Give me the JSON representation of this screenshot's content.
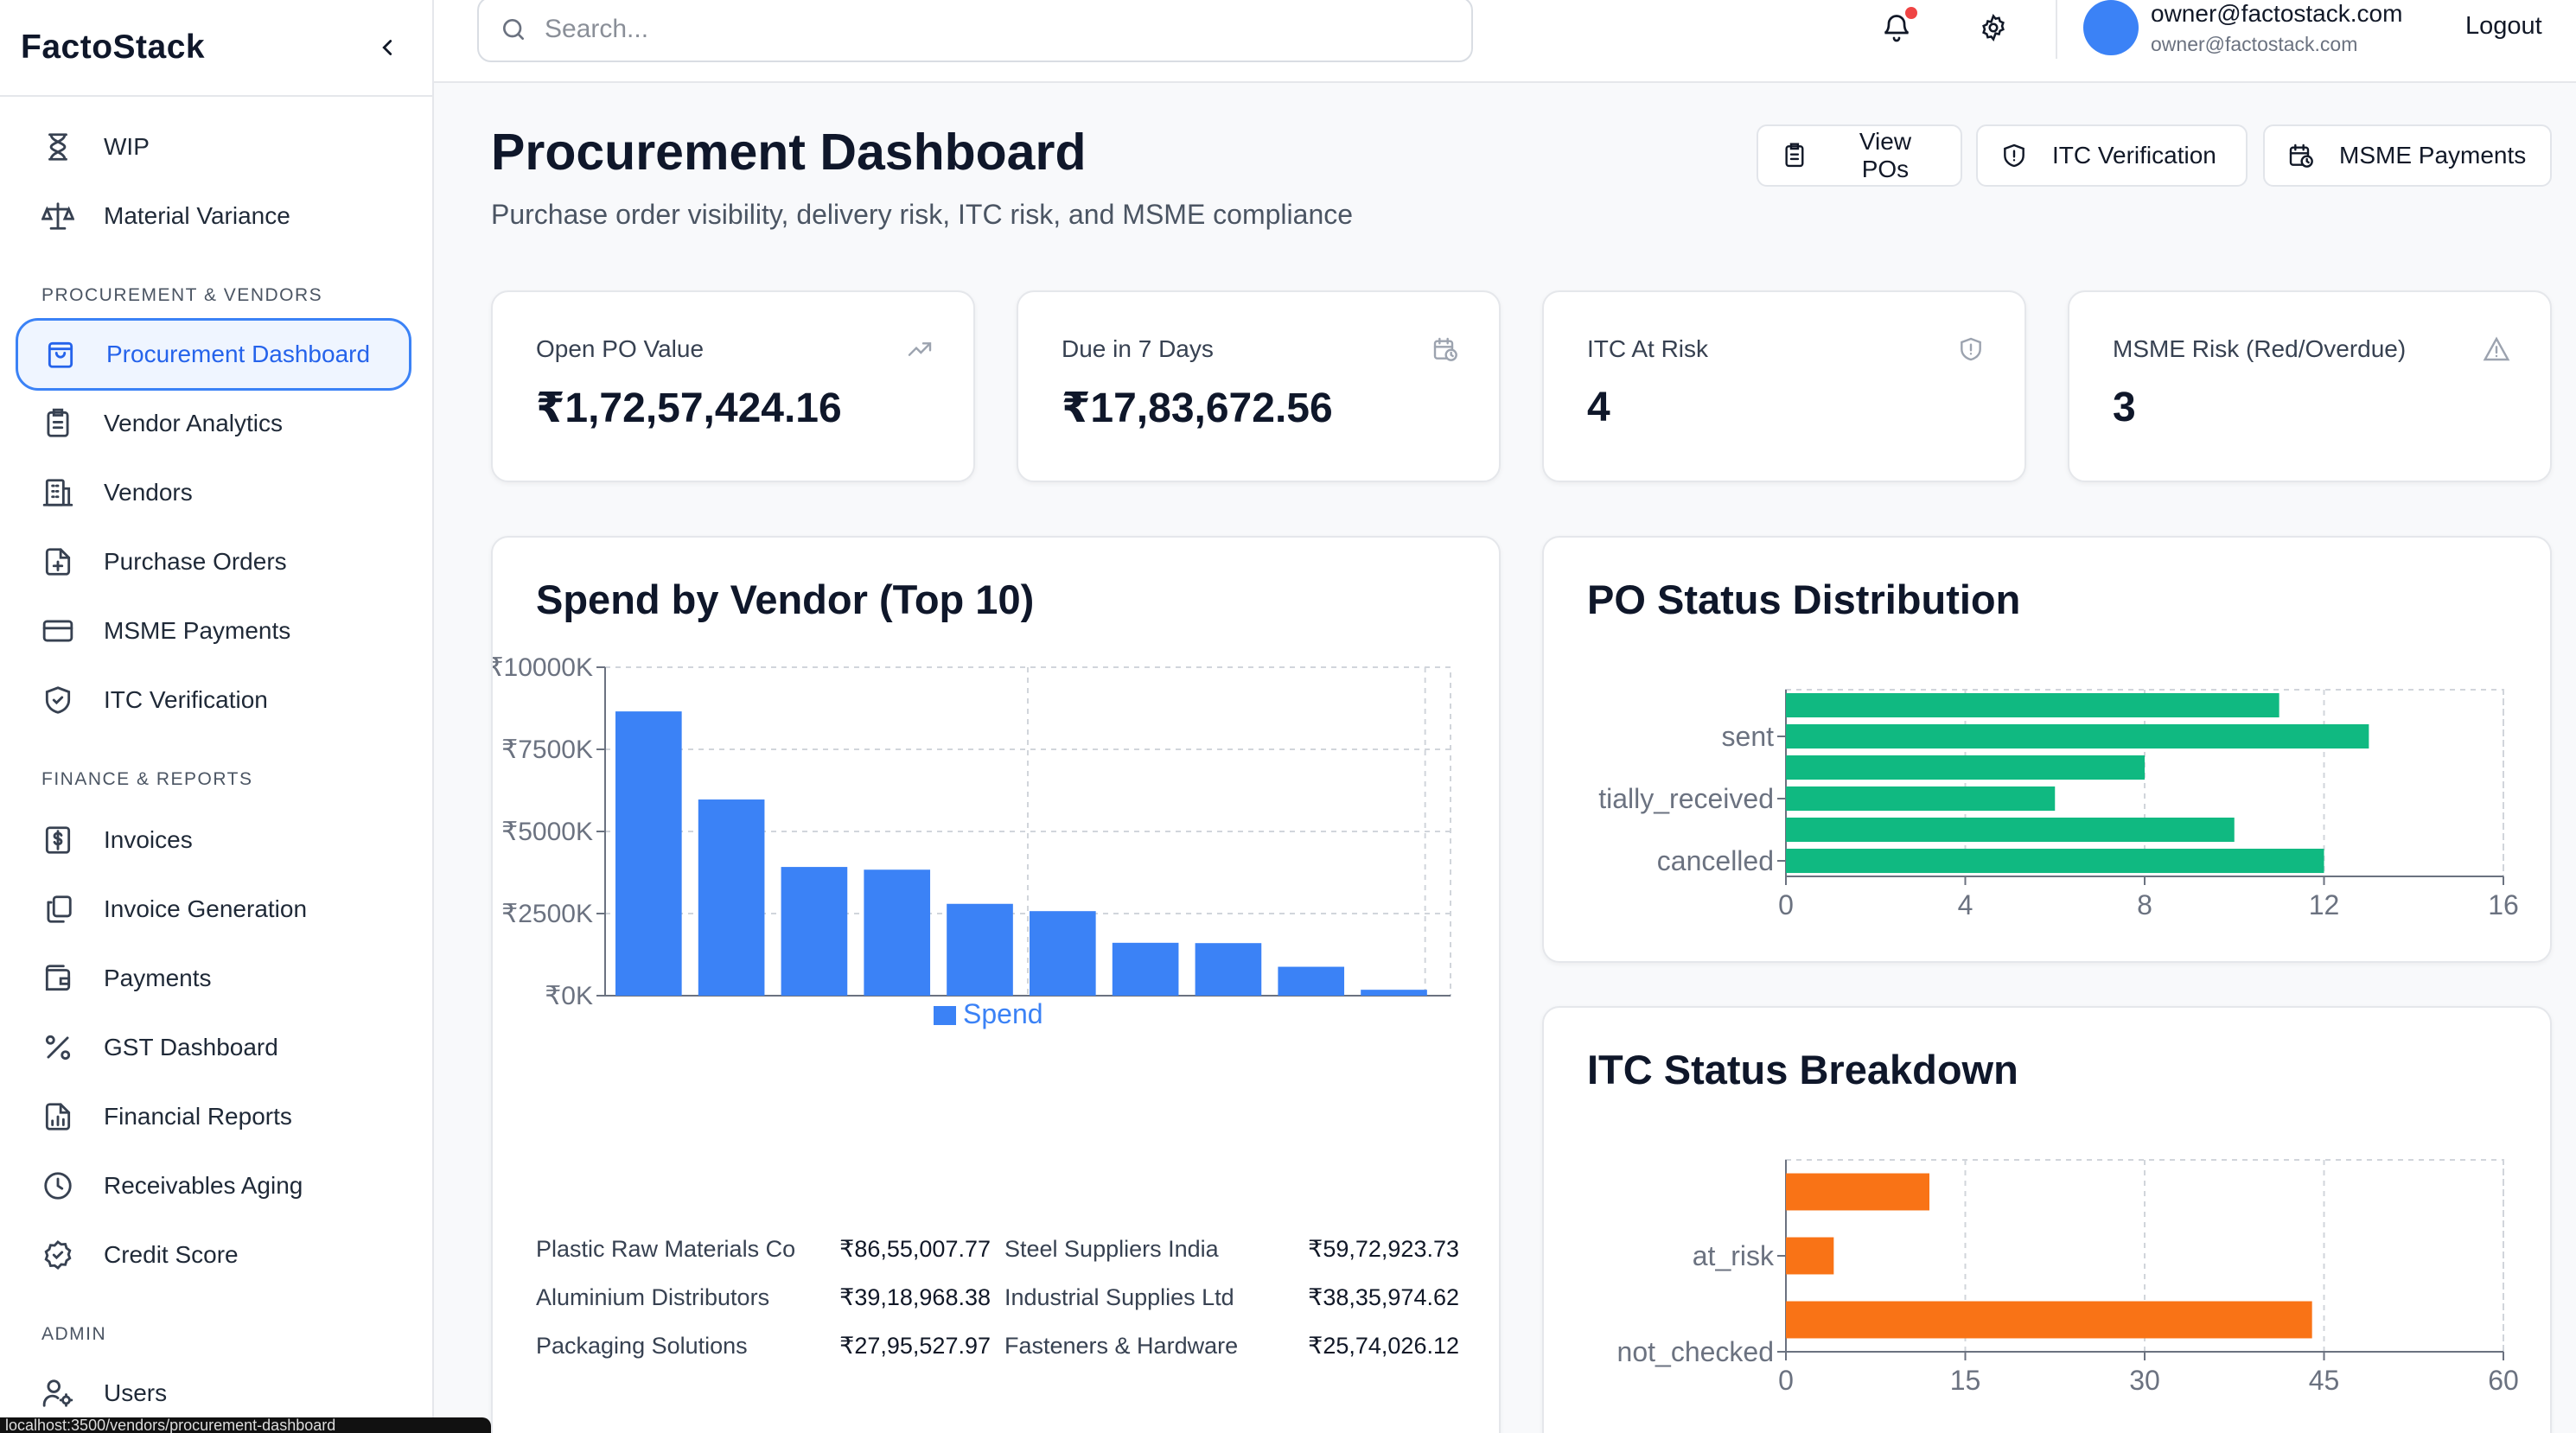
{
  "app": {
    "brand": "FactoStack"
  },
  "sidebar": {
    "top_items": [
      {
        "label": "WIP",
        "icon": "hourglass-icon"
      },
      {
        "label": "Material Variance",
        "icon": "scale-icon"
      }
    ],
    "sections": [
      {
        "title": "PROCUREMENT & VENDORS"
      },
      {
        "title": "FINANCE & REPORTS"
      },
      {
        "title": "ADMIN"
      }
    ],
    "procurement_items": [
      {
        "label": "Procurement Dashboard",
        "icon": "shopping-bag-icon",
        "active": true
      },
      {
        "label": "Vendor Analytics",
        "icon": "clipboard-list-icon"
      },
      {
        "label": "Vendors",
        "icon": "building-icon"
      },
      {
        "label": "Purchase Orders",
        "icon": "file-plus-icon"
      },
      {
        "label": "MSME Payments",
        "icon": "credit-card-icon"
      },
      {
        "label": "ITC Verification",
        "icon": "shield-check-icon"
      }
    ],
    "finance_items": [
      {
        "label": "Invoices",
        "icon": "dollar-file-icon"
      },
      {
        "label": "Invoice Generation",
        "icon": "copy-files-icon"
      },
      {
        "label": "Payments",
        "icon": "wallet-icon"
      },
      {
        "label": "GST Dashboard",
        "icon": "percent-icon"
      },
      {
        "label": "Financial Reports",
        "icon": "file-chart-icon"
      },
      {
        "label": "Receivables Aging",
        "icon": "clock-icon"
      },
      {
        "label": "Credit Score",
        "icon": "badge-check-icon"
      }
    ],
    "admin_items": [
      {
        "label": "Users",
        "icon": "user-cog-icon"
      }
    ],
    "status_url": "localhost:3500/vendors/procurement-dashboard"
  },
  "topbar": {
    "search_placeholder": "Search...",
    "user_name": "owner@factostack.com",
    "user_email": "owner@factostack.com",
    "logout_label": "Logout"
  },
  "header": {
    "title": "Procurement Dashboard",
    "subtitle": "Purchase order visibility, delivery risk, ITC risk, and MSME compliance",
    "buttons": [
      {
        "label": "View POs",
        "icon": "clipboard-icon"
      },
      {
        "label": "ITC Verification",
        "icon": "shield-icon"
      },
      {
        "label": "MSME Payments",
        "icon": "calendar-clock-icon"
      }
    ]
  },
  "kpis": [
    {
      "label": "Open PO Value",
      "value": "₹1,72,57,424.16",
      "icon": "trending-up-icon"
    },
    {
      "label": "Due in 7 Days",
      "value": "₹17,83,672.56",
      "icon": "calendar-clock-icon"
    },
    {
      "label": "ITC At Risk",
      "value": "4",
      "icon": "shield-icon"
    },
    {
      "label": "MSME Risk (Red/Overdue)",
      "value": "3",
      "icon": "alert-triangle-icon"
    }
  ],
  "spend_card": {
    "title": "Spend by Vendor (Top 10)",
    "vendors": [
      {
        "name": "Plastic Raw Materials Co",
        "amount": "₹86,55,007.77"
      },
      {
        "name": "Steel Suppliers India",
        "amount": "₹59,72,923.73"
      },
      {
        "name": "Aluminium Distributors",
        "amount": "₹39,18,968.38"
      },
      {
        "name": "Industrial Supplies Ltd",
        "amount": "₹38,35,974.62"
      },
      {
        "name": "Packaging Solutions",
        "amount": "₹27,95,527.97"
      },
      {
        "name": "Fasteners & Hardware",
        "amount": "₹25,74,026.12"
      }
    ]
  },
  "po_card": {
    "title": "PO Status Distribution"
  },
  "itc_card": {
    "title": "ITC Status Breakdown"
  },
  "chart_data": [
    {
      "type": "bar",
      "orientation": "vertical",
      "title": "Spend by Vendor (Top 10)",
      "ylim": [
        0,
        10000
      ],
      "y_ticks": [
        "₹0K",
        "₹2500K",
        "₹5000K",
        "₹7500K",
        "₹10000K"
      ],
      "y_tick_values": [
        0,
        2500,
        5000,
        7500,
        10000
      ],
      "series": [
        {
          "name": "Spend",
          "color": "#3b82f6",
          "values": [
            8655,
            5973,
            3919,
            3836,
            2796,
            2574,
            1610,
            1600,
            880,
            180
          ]
        }
      ],
      "legend": "bottom",
      "grid": true
    },
    {
      "type": "bar",
      "orientation": "horizontal",
      "title": "PO Status Distribution",
      "xlim": [
        0,
        16
      ],
      "x_ticks": [
        0,
        4,
        8,
        12,
        16
      ],
      "category_labels": [
        "sent",
        "tially_received",
        "cancelled"
      ],
      "series": [
        {
          "color": "#10b981",
          "values": [
            11,
            13,
            8,
            6,
            10,
            12
          ]
        }
      ],
      "grid": true
    },
    {
      "type": "bar",
      "orientation": "horizontal",
      "title": "ITC Status Breakdown",
      "xlim": [
        0,
        60
      ],
      "x_ticks": [
        0,
        15,
        30,
        45,
        60
      ],
      "category_labels": [
        "at_risk",
        "not_checked"
      ],
      "series": [
        {
          "color": "#f97316",
          "values": [
            12,
            4,
            44
          ]
        }
      ],
      "grid": true
    }
  ]
}
